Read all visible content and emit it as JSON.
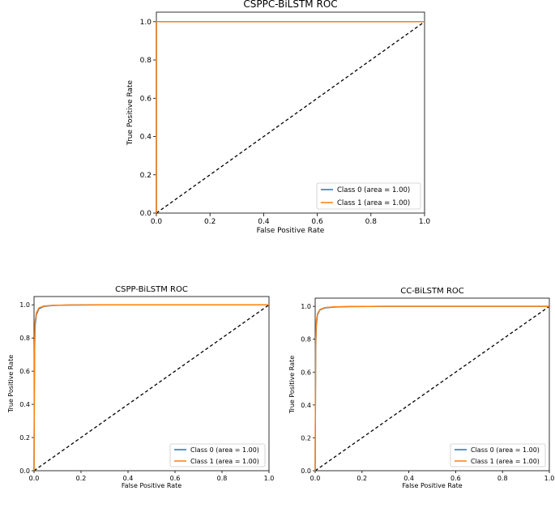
{
  "chart_data": [
    {
      "type": "line",
      "title": "CSPPC-BiLSTM ROC",
      "xlabel": "False Positive Rate",
      "ylabel": "True Positive Rate",
      "xlim": [
        0,
        1
      ],
      "ylim": [
        0,
        1.05
      ],
      "xticks": [
        "0.0",
        "0.2",
        "0.4",
        "0.6",
        "0.8",
        "1.0"
      ],
      "yticks": [
        "0.0",
        "0.2",
        "0.4",
        "0.6",
        "0.8",
        "1.0"
      ],
      "legend_position": "lower-right",
      "series": [
        {
          "name": "Class 0 (area = 1.00)",
          "color": "#1f77b4",
          "x": [
            0,
            0,
            1
          ],
          "y": [
            0,
            1,
            1
          ]
        },
        {
          "name": "Class 1 (area = 1.00)",
          "color": "#ff7f0e",
          "x": [
            0,
            0,
            1
          ],
          "y": [
            0,
            1,
            1
          ]
        },
        {
          "name": "",
          "color": "#000000",
          "dashed": true,
          "x": [
            0,
            1
          ],
          "y": [
            0,
            1
          ]
        }
      ]
    },
    {
      "type": "line",
      "title": "CSPP-BiLSTM ROC",
      "xlabel": "False Positive Rate",
      "ylabel": "True Positive Rate",
      "xlim": [
        0,
        1
      ],
      "ylim": [
        0,
        1.05
      ],
      "xticks": [
        "0.0",
        "0.2",
        "0.4",
        "0.6",
        "0.8",
        "1.0"
      ],
      "yticks": [
        "0.0",
        "0.2",
        "0.4",
        "0.6",
        "0.8",
        "1.0"
      ],
      "legend_position": "lower-right",
      "series": [
        {
          "name": "Class 0 (area = 1.00)",
          "color": "#1f77b4",
          "x": [
            0,
            0.002,
            0.005,
            0.01,
            0.02,
            0.04,
            0.08,
            0.15,
            0.3,
            1
          ],
          "y": [
            0,
            0.72,
            0.88,
            0.94,
            0.975,
            0.99,
            0.996,
            0.999,
            1,
            1
          ]
        },
        {
          "name": "Class 1 (area = 1.00)",
          "color": "#ff7f0e",
          "x": [
            0,
            0.002,
            0.005,
            0.01,
            0.02,
            0.04,
            0.08,
            0.15,
            0.3,
            1
          ],
          "y": [
            0,
            0.75,
            0.9,
            0.95,
            0.98,
            0.992,
            0.997,
            0.999,
            1,
            1
          ]
        },
        {
          "name": "",
          "color": "#000000",
          "dashed": true,
          "x": [
            0,
            1
          ],
          "y": [
            0,
            1
          ]
        }
      ]
    },
    {
      "type": "line",
      "title": "CC-BiLSTM ROC",
      "xlabel": "False Positive Rate",
      "ylabel": "True Positive Rate",
      "xlim": [
        0,
        1
      ],
      "ylim": [
        0,
        1.05
      ],
      "xticks": [
        "0.0",
        "0.2",
        "0.4",
        "0.6",
        "0.8",
        "1.0"
      ],
      "yticks": [
        "0.0",
        "0.2",
        "0.4",
        "0.6",
        "0.8",
        "1.0"
      ],
      "legend_position": "lower-right",
      "series": [
        {
          "name": "Class 0 (area = 1.00)",
          "color": "#1f77b4",
          "x": [
            0,
            0.002,
            0.005,
            0.01,
            0.02,
            0.04,
            0.08,
            0.15,
            0.3,
            1
          ],
          "y": [
            0,
            0.74,
            0.89,
            0.95,
            0.978,
            0.99,
            0.996,
            0.999,
            1,
            1
          ]
        },
        {
          "name": "Class 1 (area = 1.00)",
          "color": "#ff7f0e",
          "x": [
            0,
            0.002,
            0.005,
            0.01,
            0.02,
            0.04,
            0.08,
            0.15,
            0.3,
            1
          ],
          "y": [
            0,
            0.77,
            0.91,
            0.955,
            0.98,
            0.992,
            0.997,
            0.999,
            1,
            1
          ]
        },
        {
          "name": "",
          "color": "#000000",
          "dashed": true,
          "x": [
            0,
            1
          ],
          "y": [
            0,
            1
          ]
        }
      ]
    }
  ]
}
